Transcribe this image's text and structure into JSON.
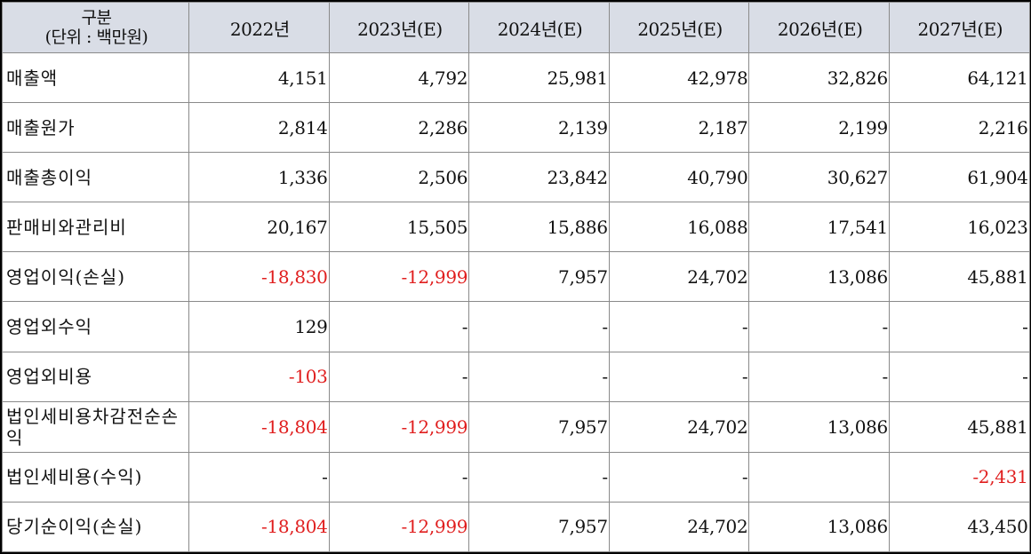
{
  "table": {
    "header_label_line1": "구분",
    "header_label_line2": "(단위 : 백만원)",
    "years": [
      "2022년",
      "2023년(E)",
      "2024년(E)",
      "2025년(E)",
      "2026년(E)",
      "2027년(E)"
    ],
    "rows": [
      {
        "label": "매출액",
        "values": [
          "4,151",
          "4,792",
          "25,981",
          "42,978",
          "32,826",
          "64,121"
        ]
      },
      {
        "label": "매출원가",
        "values": [
          "2,814",
          "2,286",
          "2,139",
          "2,187",
          "2,199",
          "2,216"
        ]
      },
      {
        "label": "매출총이익",
        "values": [
          "1,336",
          "2,506",
          "23,842",
          "40,790",
          "30,627",
          "61,904"
        ]
      },
      {
        "label": "판매비와관리비",
        "values": [
          "20,167",
          "15,505",
          "15,886",
          "16,088",
          "17,541",
          "16,023"
        ]
      },
      {
        "label": "영업이익(손실)",
        "values": [
          "-18,830",
          "-12,999",
          "7,957",
          "24,702",
          "13,086",
          "45,881"
        ]
      },
      {
        "label": "영업외수익",
        "values": [
          "129",
          "-",
          "-",
          "-",
          "-",
          "-"
        ]
      },
      {
        "label": "영업외비용",
        "values": [
          "-103",
          "-",
          "-",
          "-",
          "-",
          "-"
        ]
      },
      {
        "label": "법인세비용차감전순손익",
        "values": [
          "-18,804",
          "-12,999",
          "7,957",
          "24,702",
          "13,086",
          "45,881"
        ]
      },
      {
        "label": "법인세비용(수익)",
        "values": [
          "-",
          "-",
          "-",
          "-",
          "",
          "-2,431"
        ]
      },
      {
        "label": "당기순이익(손실)",
        "values": [
          "-18,804",
          "-12,999",
          "7,957",
          "24,702",
          "13,086",
          "43,450"
        ]
      }
    ],
    "negative_color": "#e01e1e",
    "header_bg": "#d9dde6"
  }
}
